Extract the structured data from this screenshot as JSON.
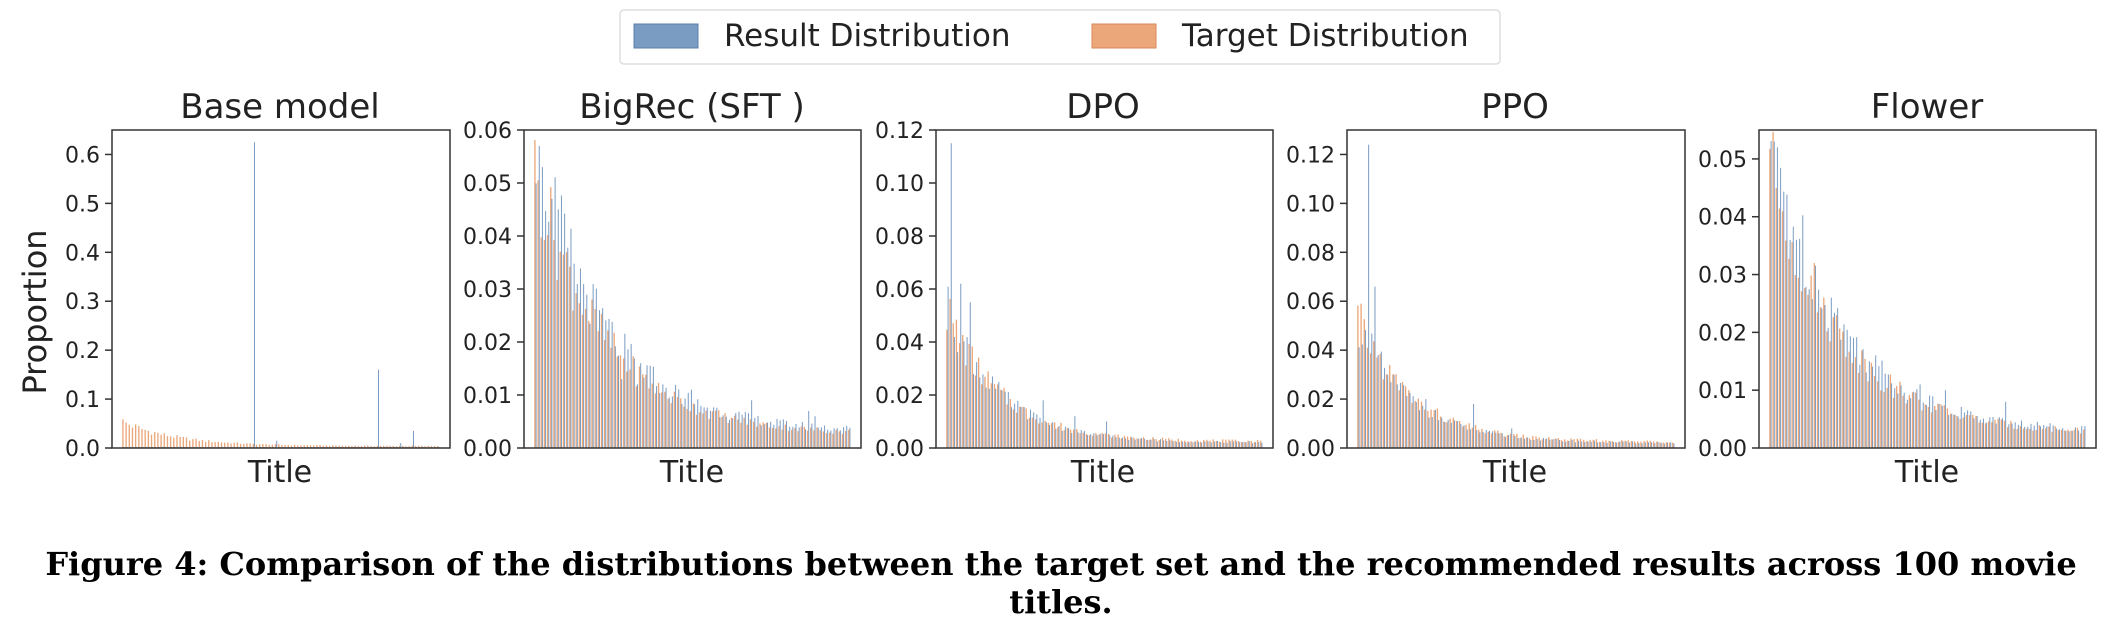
{
  "legend": {
    "items": [
      {
        "label": "Result Distribution",
        "color": "#7a9cc3"
      },
      {
        "label": "Target Distribution",
        "color": "#eba779"
      }
    ],
    "placement": "top-center"
  },
  "y_axis_label": "Proportion",
  "caption": "Figure 4: Comparison of the distributions between the target set and the recommended results across 100 movie titles.",
  "chart_data": [
    {
      "type": "bar",
      "title": "Base model",
      "xlabel": "Title",
      "ylabel": "Proportion",
      "ylim": [
        0,
        0.65
      ],
      "yticks": [
        "0.0",
        "0.1",
        "0.2",
        "0.3",
        "0.4",
        "0.5",
        "0.6"
      ],
      "grid": false,
      "categories_count": 100,
      "series": [
        {
          "name": "Result Distribution",
          "spikes": [
            [
              41,
              0.625
            ],
            [
              80,
              0.16
            ],
            [
              91,
              0.035
            ],
            [
              87,
              0.01
            ],
            [
              48,
              0.015
            ]
          ],
          "base": 0.002
        },
        {
          "name": "Target Distribution",
          "head": 0.054,
          "tail": 0.004,
          "decay": 0.06
        }
      ]
    },
    {
      "type": "bar",
      "title": "BigRec (SFT )",
      "xlabel": "Title",
      "ylabel": "",
      "ylim": [
        0,
        0.06
      ],
      "yticks": [
        "0.00",
        "0.01",
        "0.02",
        "0.03",
        "0.04",
        "0.05",
        "0.06"
      ],
      "grid": false,
      "categories_count": 100,
      "series": [
        {
          "name": "Result Distribution",
          "head": 0.057,
          "tail": 0.003,
          "decay": 0.045,
          "spikes": [
            [
              1,
              0.057
            ],
            [
              2,
              0.053
            ],
            [
              5,
              0.047
            ],
            [
              27,
              0.013
            ],
            [
              32,
              0.012
            ],
            [
              40,
              0.012
            ],
            [
              49,
              0.011
            ],
            [
              68,
              0.009
            ],
            [
              86,
              0.007
            ],
            [
              88,
              0.006
            ]
          ]
        },
        {
          "name": "Target Distribution",
          "head": 0.052,
          "tail": 0.0025,
          "decay": 0.045
        }
      ]
    },
    {
      "type": "bar",
      "title": "DPO",
      "xlabel": "Title",
      "ylabel": "",
      "ylim": [
        0,
        0.12
      ],
      "yticks": [
        "0.00",
        "0.02",
        "0.04",
        "0.06",
        "0.08",
        "0.10",
        "0.12"
      ],
      "grid": false,
      "categories_count": 100,
      "series": [
        {
          "name": "Result Distribution",
          "head": 0.052,
          "tail": 0.002,
          "decay": 0.06,
          "spikes": [
            [
              1,
              0.115
            ],
            [
              4,
              0.062
            ],
            [
              7,
              0.055
            ],
            [
              14,
              0.027
            ],
            [
              30,
              0.018
            ],
            [
              40,
              0.012
            ],
            [
              50,
              0.01
            ]
          ]
        },
        {
          "name": "Target Distribution",
          "head": 0.052,
          "tail": 0.0025,
          "decay": 0.06
        }
      ]
    },
    {
      "type": "bar",
      "title": "PPO",
      "xlabel": "Title",
      "ylabel": "",
      "ylim": [
        0,
        0.13
      ],
      "yticks": [
        "0.00",
        "0.02",
        "0.04",
        "0.06",
        "0.08",
        "0.10",
        "0.12"
      ],
      "grid": false,
      "categories_count": 100,
      "series": [
        {
          "name": "Result Distribution",
          "head": 0.05,
          "tail": 0.002,
          "decay": 0.06,
          "spikes": [
            [
              3,
              0.124
            ],
            [
              5,
              0.066
            ],
            [
              6,
              0.038
            ],
            [
              12,
              0.026
            ],
            [
              21,
              0.02
            ],
            [
              36,
              0.018
            ],
            [
              48,
              0.008
            ]
          ]
        },
        {
          "name": "Target Distribution",
          "head": 0.053,
          "tail": 0.0025,
          "decay": 0.06
        }
      ]
    },
    {
      "type": "bar",
      "title": "Flower",
      "xlabel": "Title",
      "ylabel": "",
      "ylim": [
        0,
        0.055
      ],
      "yticks": [
        "0.00",
        "0.01",
        "0.02",
        "0.03",
        "0.04",
        "0.05"
      ],
      "grid": false,
      "categories_count": 100,
      "series": [
        {
          "name": "Result Distribution",
          "head": 0.053,
          "tail": 0.0028,
          "decay": 0.045,
          "spikes": [
            [
              1,
              0.053
            ],
            [
              2,
              0.052
            ],
            [
              8,
              0.036
            ],
            [
              19,
              0.026
            ],
            [
              31,
              0.015
            ],
            [
              47,
              0.011
            ],
            [
              55,
              0.01
            ],
            [
              74,
              0.008
            ]
          ]
        },
        {
          "name": "Target Distribution",
          "head": 0.049,
          "tail": 0.0025,
          "decay": 0.045
        }
      ]
    }
  ]
}
